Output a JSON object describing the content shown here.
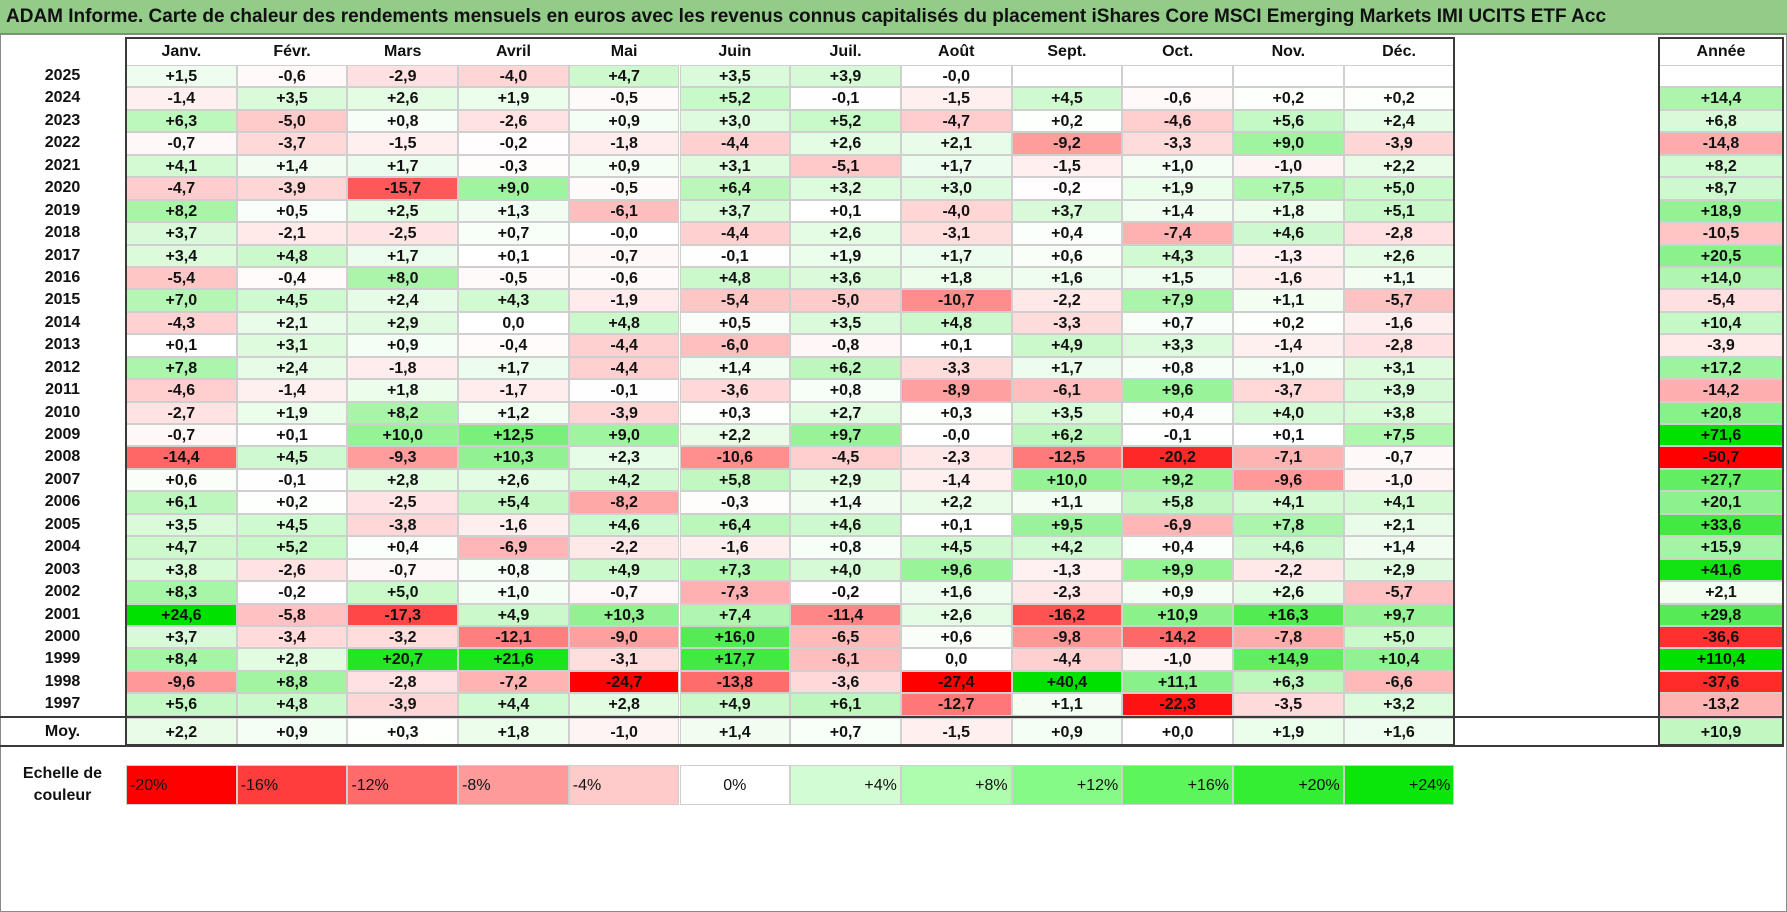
{
  "title": "ADAM Informe. Carte de chaleur des rendements mensuels en euros avec les revenus connus capitalisés du placement iShares Core MSCI Emerging Markets IMI UCITS ETF Acc",
  "chart_data": {
    "type": "heatmap",
    "title": "ADAM Informe. Carte de chaleur des rendements mensuels en euros avec les revenus connus capitalisés du placement iShares Core MSCI Emerging Markets IMI UCITS ETF Acc",
    "months": [
      "Janv.",
      "Févr.",
      "Mars",
      "Avril",
      "Mai",
      "Juin",
      "Juil.",
      "Août",
      "Sept.",
      "Oct.",
      "Nov.",
      "Déc."
    ],
    "year_header": "Année",
    "rows": [
      {
        "year": "2025",
        "values": [
          "+1,5",
          "-0,6",
          "-2,9",
          "-4,0",
          "+4,7",
          "+3,5",
          "+3,9",
          "-0,0",
          "",
          "",
          "",
          ""
        ],
        "annual": ""
      },
      {
        "year": "2024",
        "values": [
          "-1,4",
          "+3,5",
          "+2,6",
          "+1,9",
          "-0,5",
          "+5,2",
          "-0,1",
          "-1,5",
          "+4,5",
          "-0,6",
          "+0,2",
          "+0,2"
        ],
        "annual": "+14,4"
      },
      {
        "year": "2023",
        "values": [
          "+6,3",
          "-5,0",
          "+0,8",
          "-2,6",
          "+0,9",
          "+3,0",
          "+5,2",
          "-4,7",
          "+0,2",
          "-4,6",
          "+5,6",
          "+2,4"
        ],
        "annual": "+6,8"
      },
      {
        "year": "2022",
        "values": [
          "-0,7",
          "-3,7",
          "-1,5",
          "-0,2",
          "-1,8",
          "-4,4",
          "+2,6",
          "+2,1",
          "-9,2",
          "-3,3",
          "+9,0",
          "-3,9"
        ],
        "annual": "-14,8"
      },
      {
        "year": "2021",
        "values": [
          "+4,1",
          "+1,4",
          "+1,7",
          "-0,3",
          "+0,9",
          "+3,1",
          "-5,1",
          "+1,7",
          "-1,5",
          "+1,0",
          "-1,0",
          "+2,2"
        ],
        "annual": "+8,2"
      },
      {
        "year": "2020",
        "values": [
          "-4,7",
          "-3,9",
          "-15,7",
          "+9,0",
          "-0,5",
          "+6,4",
          "+3,2",
          "+3,0",
          "-0,2",
          "+1,9",
          "+7,5",
          "+5,0"
        ],
        "annual": "+8,7"
      },
      {
        "year": "2019",
        "values": [
          "+8,2",
          "+0,5",
          "+2,5",
          "+1,3",
          "-6,1",
          "+3,7",
          "+0,1",
          "-4,0",
          "+3,7",
          "+1,4",
          "+1,8",
          "+5,1"
        ],
        "annual": "+18,9"
      },
      {
        "year": "2018",
        "values": [
          "+3,7",
          "-2,1",
          "-2,5",
          "+0,7",
          "-0,0",
          "-4,4",
          "+2,6",
          "-3,1",
          "+0,4",
          "-7,4",
          "+4,6",
          "-2,8"
        ],
        "annual": "-10,5"
      },
      {
        "year": "2017",
        "values": [
          "+3,4",
          "+4,8",
          "+1,7",
          "+0,1",
          "-0,7",
          "-0,1",
          "+1,9",
          "+1,7",
          "+0,6",
          "+4,3",
          "-1,3",
          "+2,6"
        ],
        "annual": "+20,5"
      },
      {
        "year": "2016",
        "values": [
          "-5,4",
          "-0,4",
          "+8,0",
          "-0,5",
          "-0,6",
          "+4,8",
          "+3,6",
          "+1,8",
          "+1,6",
          "+1,5",
          "-1,6",
          "+1,1"
        ],
        "annual": "+14,0"
      },
      {
        "year": "2015",
        "values": [
          "+7,0",
          "+4,5",
          "+2,4",
          "+4,3",
          "-1,9",
          "-5,4",
          "-5,0",
          "-10,7",
          "-2,2",
          "+7,9",
          "+1,1",
          "-5,7"
        ],
        "annual": "-5,4"
      },
      {
        "year": "2014",
        "values": [
          "-4,3",
          "+2,1",
          "+2,9",
          "0,0",
          "+4,8",
          "+0,5",
          "+3,5",
          "+4,8",
          "-3,3",
          "+0,7",
          "+0,2",
          "-1,6"
        ],
        "annual": "+10,4"
      },
      {
        "year": "2013",
        "values": [
          "+0,1",
          "+3,1",
          "+0,9",
          "-0,4",
          "-4,4",
          "-6,0",
          "-0,8",
          "+0,1",
          "+4,9",
          "+3,3",
          "-1,4",
          "-2,8"
        ],
        "annual": "-3,9"
      },
      {
        "year": "2012",
        "values": [
          "+7,8",
          "+2,4",
          "-1,8",
          "+1,7",
          "-4,4",
          "+1,4",
          "+6,2",
          "-3,3",
          "+1,7",
          "+0,8",
          "+1,0",
          "+3,1"
        ],
        "annual": "+17,2"
      },
      {
        "year": "2011",
        "values": [
          "-4,6",
          "-1,4",
          "+1,8",
          "-1,7",
          "-0,1",
          "-3,6",
          "+0,8",
          "-8,9",
          "-6,1",
          "+9,6",
          "-3,7",
          "+3,9"
        ],
        "annual": "-14,2"
      },
      {
        "year": "2010",
        "values": [
          "-2,7",
          "+1,9",
          "+8,2",
          "+1,2",
          "-3,9",
          "+0,3",
          "+2,7",
          "+0,3",
          "+3,5",
          "+0,4",
          "+4,0",
          "+3,8"
        ],
        "annual": "+20,8"
      },
      {
        "year": "2009",
        "values": [
          "-0,7",
          "+0,1",
          "+10,0",
          "+12,5",
          "+9,0",
          "+2,2",
          "+9,7",
          "-0,0",
          "+6,2",
          "-0,1",
          "+0,1",
          "+7,5"
        ],
        "annual": "+71,6"
      },
      {
        "year": "2008",
        "values": [
          "-14,4",
          "+4,5",
          "-9,3",
          "+10,3",
          "+2,3",
          "-10,6",
          "-4,5",
          "-2,3",
          "-12,5",
          "-20,2",
          "-7,1",
          "-0,7"
        ],
        "annual": "-50,7"
      },
      {
        "year": "2007",
        "values": [
          "+0,6",
          "-0,1",
          "+2,8",
          "+2,6",
          "+4,2",
          "+5,8",
          "+2,9",
          "-1,4",
          "+10,0",
          "+9,2",
          "-9,6",
          "-1,0"
        ],
        "annual": "+27,7"
      },
      {
        "year": "2006",
        "values": [
          "+6,1",
          "+0,2",
          "-2,5",
          "+5,4",
          "-8,2",
          "-0,3",
          "+1,4",
          "+2,2",
          "+1,1",
          "+5,8",
          "+4,1",
          "+4,1"
        ],
        "annual": "+20,1"
      },
      {
        "year": "2005",
        "values": [
          "+3,5",
          "+4,5",
          "-3,8",
          "-1,6",
          "+4,6",
          "+6,4",
          "+4,6",
          "+0,1",
          "+9,5",
          "-6,9",
          "+7,8",
          "+2,1"
        ],
        "annual": "+33,6"
      },
      {
        "year": "2004",
        "values": [
          "+4,7",
          "+5,2",
          "+0,4",
          "-6,9",
          "-2,2",
          "-1,6",
          "+0,8",
          "+4,5",
          "+4,2",
          "+0,4",
          "+4,6",
          "+1,4"
        ],
        "annual": "+15,9"
      },
      {
        "year": "2003",
        "values": [
          "+3,8",
          "-2,6",
          "-0,7",
          "+0,8",
          "+4,9",
          "+7,3",
          "+4,0",
          "+9,6",
          "-1,3",
          "+9,9",
          "-2,2",
          "+2,9"
        ],
        "annual": "+41,6"
      },
      {
        "year": "2002",
        "values": [
          "+8,3",
          "-0,2",
          "+5,0",
          "+1,0",
          "-0,7",
          "-7,3",
          "-0,2",
          "+1,6",
          "-2,3",
          "+0,9",
          "+2,6",
          "-5,7"
        ],
        "annual": "+2,1"
      },
      {
        "year": "2001",
        "values": [
          "+24,6",
          "-5,8",
          "-17,3",
          "+4,9",
          "+10,3",
          "+7,4",
          "-11,4",
          "+2,6",
          "-16,2",
          "+10,9",
          "+16,3",
          "+9,7"
        ],
        "annual": "+29,8"
      },
      {
        "year": "2000",
        "values": [
          "+3,7",
          "-3,4",
          "-3,2",
          "-12,1",
          "-9,0",
          "+16,0",
          "-6,5",
          "+0,6",
          "-9,8",
          "-14,2",
          "-7,8",
          "+5,0"
        ],
        "annual": "-36,6"
      },
      {
        "year": "1999",
        "values": [
          "+8,4",
          "+2,8",
          "+20,7",
          "+21,6",
          "-3,1",
          "+17,7",
          "-6,1",
          "0,0",
          "-4,4",
          "-1,0",
          "+14,9",
          "+10,4"
        ],
        "annual": "+110,4"
      },
      {
        "year": "1998",
        "values": [
          "-9,6",
          "+8,8",
          "-2,8",
          "-7,2",
          "-24,7",
          "-13,8",
          "-3,6",
          "-27,4",
          "+40,4",
          "+11,1",
          "+6,3",
          "-6,6"
        ],
        "annual": "-37,6"
      },
      {
        "year": "1997",
        "values": [
          "+5,6",
          "+4,8",
          "-3,9",
          "+4,4",
          "+2,8",
          "+4,9",
          "+6,1",
          "-12,7",
          "+1,1",
          "-22,3",
          "-3,5",
          "+3,2"
        ],
        "annual": "-13,2"
      }
    ],
    "average": {
      "label": "Moy.",
      "values": [
        "+2,2",
        "+0,9",
        "+0,3",
        "+1,8",
        "-1,0",
        "+1,4",
        "+0,7",
        "-1,5",
        "+0,9",
        "+0,0",
        "+1,9",
        "+1,6"
      ],
      "annual": "+10,9"
    },
    "color_scale": {
      "label": "Echelle de couleur",
      "stops": [
        "-20%",
        "-16%",
        "-12%",
        "-8%",
        "-4%",
        "0%",
        "+4%",
        "+8%",
        "+12%",
        "+16%",
        "+20%",
        "+24%"
      ],
      "stop_values": [
        -20,
        -16,
        -12,
        -8,
        -4,
        0,
        4,
        8,
        12,
        16,
        20,
        24
      ],
      "stop_colors": [
        "#ff0000",
        "#ff3d3d",
        "#ff6a6a",
        "#ff9a9a",
        "#ffcaca",
        "#ffffff",
        "#d2fcd2",
        "#aefcae",
        "#86fa86",
        "#5cf55c",
        "#33ee33",
        "#0ae60a"
      ]
    },
    "colors": {
      "negative_max": "#ff0000",
      "neutral": "#ffffff",
      "positive_max": "#00dd00"
    }
  }
}
